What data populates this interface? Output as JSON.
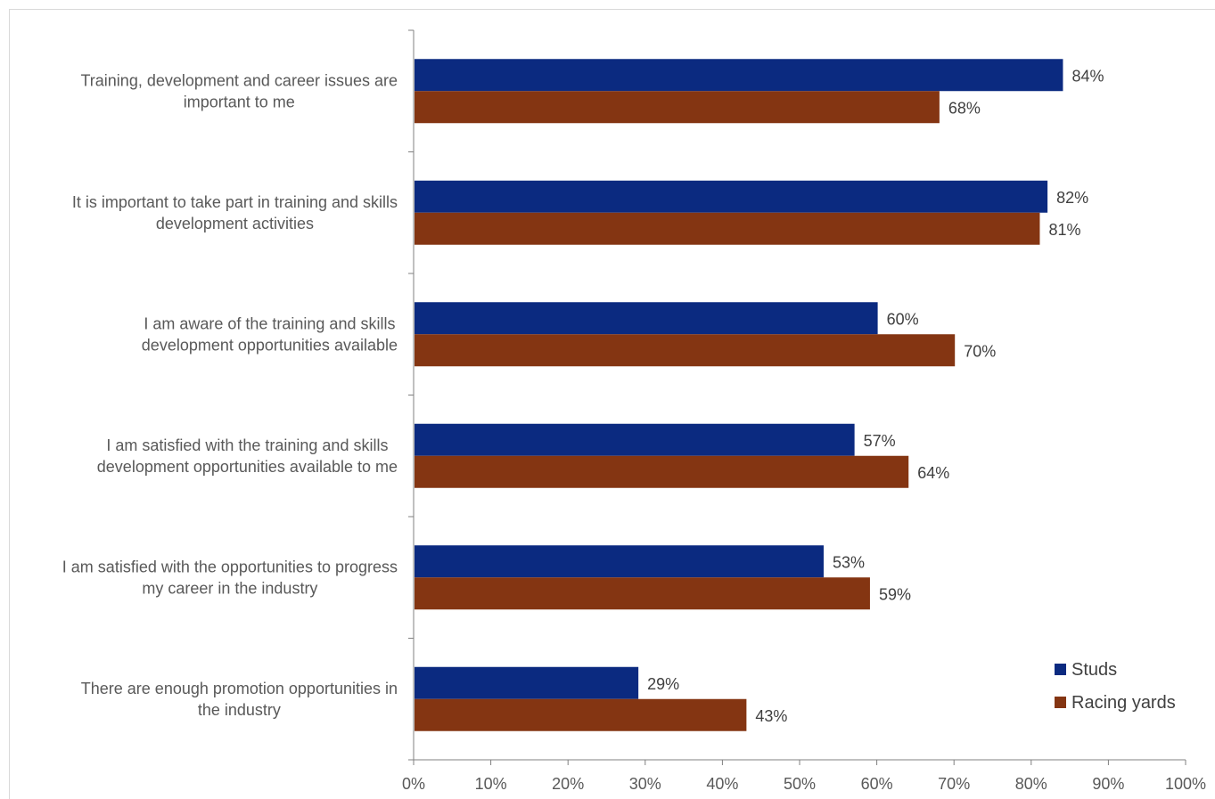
{
  "chart_data": {
    "type": "bar",
    "orientation": "horizontal",
    "categories": [
      [
        "Training, development and career issues are",
        "important to me"
      ],
      [
        "It is important to take part in training and skills",
        "development activities"
      ],
      [
        "I am aware of the training and skills",
        "development opportunities available"
      ],
      [
        "I am satisfied with the training and skills",
        "development opportunities available to me"
      ],
      [
        "I am satisfied with the opportunities to progress",
        "my career in the industry"
      ],
      [
        "There are enough promotion opportunities in",
        "the industry"
      ]
    ],
    "series": [
      {
        "name": "Studs",
        "color": "#0b2a80",
        "values": [
          84,
          82,
          60,
          57,
          53,
          29
        ],
        "labels": [
          "84%",
          "82%",
          "60%",
          "57%",
          "53%",
          "29%"
        ]
      },
      {
        "name": "Racing yards",
        "color": "#843512",
        "values": [
          68,
          81,
          70,
          64,
          59,
          43
        ],
        "labels": [
          "68%",
          "81%",
          "70%",
          "64%",
          "59%",
          "43%"
        ]
      }
    ],
    "xlim": [
      0,
      100
    ],
    "ticks": [
      "0%",
      "10%",
      "20%",
      "30%",
      "40%",
      "50%",
      "60%",
      "70%",
      "80%",
      "90%",
      "100%"
    ],
    "grid": false,
    "legend_position": "bottom-right",
    "title": "",
    "xlabel": "",
    "ylabel": ""
  }
}
